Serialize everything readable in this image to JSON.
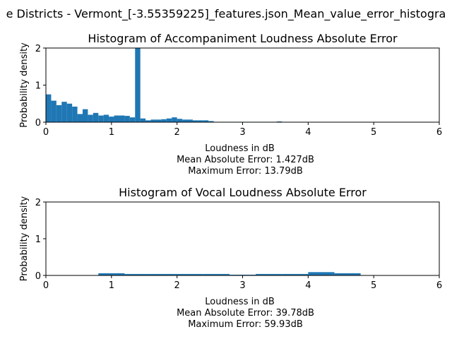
{
  "figure": {
    "suptitle": "e Districts - Vermont_[-3.55359225]_features.json_Mean_value_error_histogra",
    "bar_color": "#1f77b4"
  },
  "chart_data": [
    {
      "type": "bar",
      "title": "Histogram of Accompaniment Loudness Absolute Error",
      "xlabel": "Loudness in dB",
      "ylabel": "Probability density",
      "xlim": [
        0,
        6
      ],
      "ylim": [
        0,
        2
      ],
      "xticks": [
        "0",
        "1",
        "2",
        "3",
        "4",
        "5",
        "6"
      ],
      "yticks": [
        "0",
        "1",
        "2"
      ],
      "stats": [
        "Mean Absolute Error: 1.427dB",
        "Maximum Error: 13.79dB"
      ],
      "bin_width": 0.08,
      "bin_starts": [
        0.0,
        0.08,
        0.16,
        0.24,
        0.32,
        0.4,
        0.48,
        0.56,
        0.64,
        0.72,
        0.8,
        0.88,
        0.96,
        1.04,
        1.12,
        1.2,
        1.28,
        1.36,
        1.44,
        1.52,
        1.6,
        1.68,
        1.76,
        1.84,
        1.92,
        2.0,
        2.08,
        2.16,
        2.24,
        2.32,
        2.4,
        2.48,
        2.56,
        2.64,
        2.72,
        2.8,
        2.88,
        2.96,
        3.04,
        3.12,
        3.2,
        3.28,
        3.36,
        3.44,
        3.52,
        3.6
      ],
      "values": [
        0.75,
        0.58,
        0.46,
        0.55,
        0.5,
        0.42,
        0.22,
        0.35,
        0.2,
        0.25,
        0.18,
        0.2,
        0.15,
        0.18,
        0.18,
        0.17,
        0.13,
        2.0,
        0.1,
        0.05,
        0.07,
        0.07,
        0.08,
        0.1,
        0.13,
        0.09,
        0.07,
        0.07,
        0.05,
        0.05,
        0.05,
        0.03,
        0.01,
        0.01,
        0.01,
        0.01,
        0.01,
        0.01,
        0.01,
        0.01,
        0.01,
        0.01,
        0.01,
        0.01,
        0.02,
        0.01
      ]
    },
    {
      "type": "bar",
      "title": "Histogram of Vocal Loudness Absolute Error",
      "xlabel": "Loudness in dB",
      "ylabel": "Probability density",
      "xlim": [
        0,
        6
      ],
      "ylim": [
        0,
        2
      ],
      "xticks": [
        "0",
        "1",
        "2",
        "3",
        "4",
        "5",
        "6"
      ],
      "yticks": [
        "0",
        "1",
        "2"
      ],
      "stats": [
        "Mean Absolute Error: 39.78dB",
        "Maximum Error: 59.93dB"
      ],
      "bin_width": 0.4,
      "bin_starts": [
        0.0,
        0.4,
        0.8,
        1.2,
        1.6,
        2.0,
        2.4,
        2.8,
        3.2,
        3.6,
        4.0,
        4.4
      ],
      "values": [
        0.01,
        0.01,
        0.06,
        0.04,
        0.04,
        0.04,
        0.04,
        0.02,
        0.04,
        0.04,
        0.09,
        0.06
      ]
    }
  ]
}
